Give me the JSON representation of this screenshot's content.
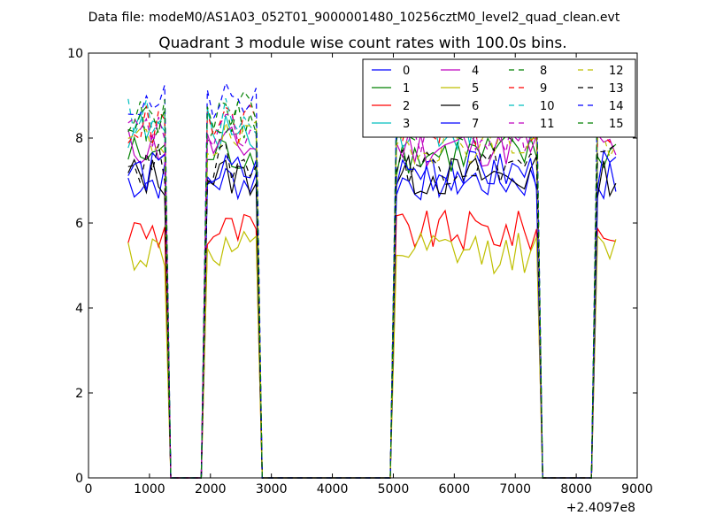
{
  "chart_data": {
    "type": "line",
    "suptitle": "Data file: modeM0/AS1A03_052T01_9000001480_10256cztM0_level2_quad_clean.evt",
    "title": "Quadrant 3 module wise count rates with 100.0s bins.",
    "xlabel": "",
    "ylabel": "",
    "x_offset_label": "+2.4097e8",
    "xlim": [
      0,
      9000
    ],
    "ylim": [
      0,
      10
    ],
    "xticks": [
      0,
      1000,
      2000,
      3000,
      4000,
      5000,
      6000,
      7000,
      8000,
      9000
    ],
    "yticks": [
      0,
      2,
      4,
      6,
      8,
      10
    ],
    "legend_position": "top-right",
    "segments": [
      {
        "x_start": 650,
        "x_end": 1250,
        "rate": "high"
      },
      {
        "x_start": 1950,
        "x_end": 2750,
        "rate": "high"
      },
      {
        "x_start": 5050,
        "x_end": 7350,
        "rate": "high"
      },
      {
        "x_start": 8350,
        "x_end": 8650,
        "rate": "high"
      }
    ],
    "series": [
      {
        "name": "0",
        "color": "#0000ff",
        "dash": "solid",
        "level": 7.0
      },
      {
        "name": "1",
        "color": "#008000",
        "dash": "solid",
        "level": 7.6
      },
      {
        "name": "2",
        "color": "#ff0000",
        "dash": "solid",
        "level": 5.8
      },
      {
        "name": "3",
        "color": "#00bfbf",
        "dash": "solid",
        "level": 8.2
      },
      {
        "name": "4",
        "color": "#bf00bf",
        "dash": "solid",
        "level": 7.8
      },
      {
        "name": "5",
        "color": "#bfbf00",
        "dash": "solid",
        "level": 5.3
      },
      {
        "name": "6",
        "color": "#000000",
        "dash": "solid",
        "level": 7.1
      },
      {
        "name": "7",
        "color": "#0000ff",
        "dash": "solid",
        "level": 7.2
      },
      {
        "name": "8",
        "color": "#008000",
        "dash": "dashed",
        "level": 8.4
      },
      {
        "name": "9",
        "color": "#ff0000",
        "dash": "dashed",
        "level": 8.3
      },
      {
        "name": "10",
        "color": "#00bfbf",
        "dash": "dashed",
        "level": 8.5
      },
      {
        "name": "11",
        "color": "#bf00bf",
        "dash": "dashed",
        "level": 8.1
      },
      {
        "name": "12",
        "color": "#bfbf00",
        "dash": "dashed",
        "level": 7.9
      },
      {
        "name": "13",
        "color": "#000000",
        "dash": "dashed",
        "level": 7.4
      },
      {
        "name": "14",
        "color": "#0000ff",
        "dash": "dashed",
        "level": 8.8
      },
      {
        "name": "15",
        "color": "#008000",
        "dash": "dashed",
        "level": 8.6
      }
    ]
  }
}
